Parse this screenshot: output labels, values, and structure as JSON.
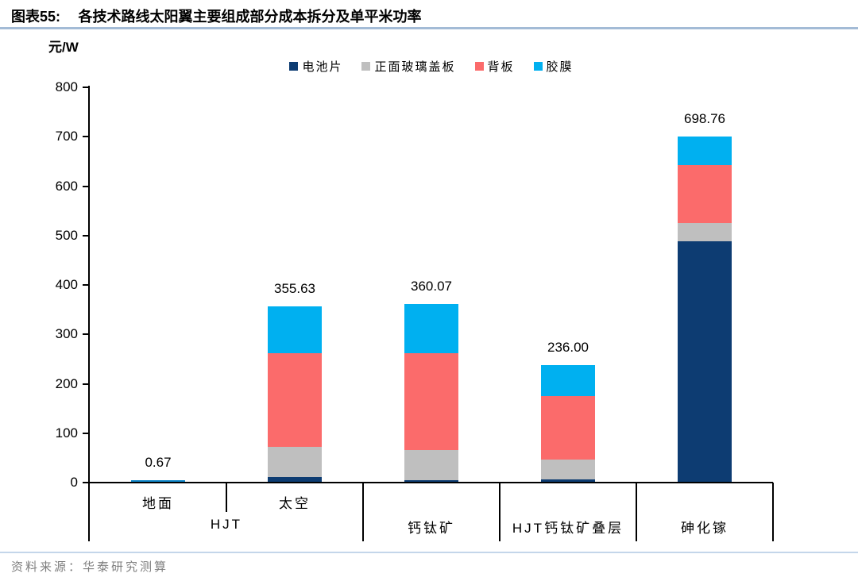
{
  "figure_label": "图表55:",
  "source": {
    "label": "资料来源：",
    "text": "华泰研究测算"
  },
  "colors": {
    "title_rule": "#A3BBD6",
    "source_rule": "#C4D6EA",
    "source_text": "#7F7F7F",
    "axis": "#000000",
    "tiny_bar_sliver": "#0E86C8"
  },
  "chart_data": {
    "type": "bar",
    "stacked": true,
    "title": "各技术路线太阳翼主要组成部分成本拆分及单平米功率",
    "ylabel": "元/W",
    "ylim": [
      0,
      800
    ],
    "ytick_step": 100,
    "grid": false,
    "legend_position": "top-center",
    "categories": [
      {
        "group": "HJT",
        "sub": "地面"
      },
      {
        "group": "HJT",
        "sub": "太空"
      },
      {
        "group": "钙钛矿",
        "sub": ""
      },
      {
        "group": "HJT钙钛矿叠层",
        "sub": ""
      },
      {
        "group": "砷化镓",
        "sub": ""
      }
    ],
    "series": [
      {
        "name": "电池片",
        "color": "#0D3C72",
        "values": [
          0.02,
          9.0,
          3.0,
          5.0,
          486.0
        ]
      },
      {
        "name": "正面玻璃盖板",
        "color": "#BFBFBF",
        "values": [
          0.11,
          61.0,
          62.0,
          40.0,
          37.0
        ]
      },
      {
        "name": "背板",
        "color": "#FB6B6B",
        "values": [
          0.36,
          190.0,
          195.0,
          129.0,
          118.0
        ]
      },
      {
        "name": "胶膜",
        "color": "#00B0F0",
        "values": [
          0.18,
          95.63,
          100.07,
          62.0,
          57.76
        ]
      }
    ],
    "totals": [
      0.67,
      355.63,
      360.07,
      236.0,
      698.76
    ],
    "total_labels": [
      "0.67",
      "355.63",
      "360.07",
      "236.00",
      "698.76"
    ]
  }
}
